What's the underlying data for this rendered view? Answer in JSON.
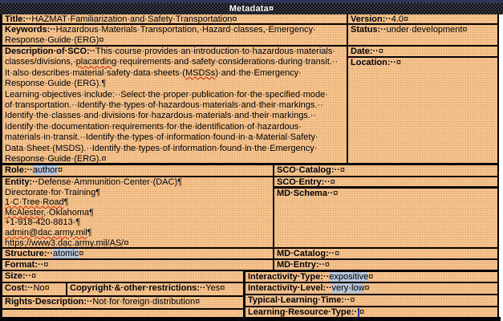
{
  "colors": {
    "peach": "#f6c48f",
    "hl": "#b5c4d8",
    "caret": "#223a99",
    "navy": "#34345a",
    "squiggle": "#cc2200"
  },
  "header": {
    "title": "Metadata¤"
  },
  "cells": {
    "title": [
      {
        "t": "Title:··",
        "b": true
      },
      {
        "t": "HAZMAT·Familiarization·and·Safety·Transportation¤"
      }
    ],
    "version": [
      {
        "t": "Version:··",
        "b": true
      },
      {
        "t": "4.0¤"
      }
    ],
    "keywords": [
      {
        "t": "Keywords:··",
        "b": true
      },
      {
        "t": "Hazardous·Materials·Transportation,·Hazard·classes,·Emergency·\nResponse·Guide·(ERG)¤"
      }
    ],
    "status": [
      {
        "t": "Status:··",
        "b": true
      },
      {
        "t": "under·development¤"
      }
    ],
    "description": [
      {
        "t": "Description·of·SCO:··",
        "b": true
      },
      {
        "t": "This·course·provides·an·introduction·to·hazardous·materials·\nclasses/divisions,·"
      },
      {
        "t": "placarding",
        "sp": true
      },
      {
        "t": "·requirements·and·safety·considerations·during·transit.··\nIt·also·describes·material·safety·data·sheets·("
      },
      {
        "t": "MSDSs",
        "sp": true
      },
      {
        "t": ")·and·the·Emergency·\nResponse·Guide·(ERG).¶\nLearning·objectives·include:··Select·the·proper·publication·for·the·specified·mode·\nof·transportation.··Identify·the·types·of·hazardous·materials·and·their·markings.··\nIdentify·the·classes·and·divisions·for·hazardous·materials·and·their·markings.··\nIdentify·the·documentation·requirements·for·the·identification·of·hazardous·\nmaterials·in·transit.··Identify·the·types·of·information·found·in·a·Material·Safety·\nData·Sheet·(MSDS).··Identify·the·types·of·information·found·in·the·Emergency·\nResponse·Guide·(ERG).¤"
      }
    ],
    "date": [
      {
        "t": "Date:··",
        "b": true
      },
      {
        "t": "¤"
      }
    ],
    "location": [
      {
        "t": "Location:··",
        "b": true
      },
      {
        "t": "¤"
      }
    ],
    "role": [
      {
        "t": "Role:··",
        "b": true
      },
      {
        "t": "author",
        "hl": true
      },
      {
        "t": "¤"
      }
    ],
    "sco_catalog": [
      {
        "t": "SCO·Catalog:··",
        "b": true
      },
      {
        "t": "¤"
      }
    ],
    "entity": [
      {
        "t": "Entity:··",
        "b": true
      },
      {
        "t": "Defense·Ammunition·Center·(DAC)¶\nDirectorate·for·Training¶\n"
      },
      {
        "t": "1·C·Tree·Road",
        "sp": true
      },
      {
        "t": "¶\n"
      },
      {
        "t": "McAlester",
        "sp": true
      },
      {
        "t": ",·Oklahoma¶\n+1-918-420-8813·¶\n"
      },
      {
        "t": "admin@dac.army.mil",
        "sp": true
      },
      {
        "t": "¶\n"
      },
      {
        "t": "https://www3.dac.army.mil/AS/",
        "sp": true
      },
      {
        "t": "¤"
      }
    ],
    "sco_entry": [
      {
        "t": "SCO·Entry:··",
        "b": true
      },
      {
        "t": "¤"
      }
    ],
    "md_schema": [
      {
        "t": "MD·Schema··",
        "b": true
      },
      {
        "t": "¤"
      }
    ],
    "structure": [
      {
        "t": "Structure:··",
        "b": true
      },
      {
        "t": "atomic",
        "hl": true
      },
      {
        "t": "¤"
      }
    ],
    "md_catalog": [
      {
        "t": "MD·Catalog:··",
        "b": true
      },
      {
        "t": "¤"
      }
    ],
    "format": [
      {
        "t": "Format:··",
        "b": true
      },
      {
        "t": "¤"
      }
    ],
    "md_entry": [
      {
        "t": "MD·Entry:··",
        "b": true
      },
      {
        "t": "¤"
      }
    ],
    "size": [
      {
        "t": "Size:··",
        "b": true
      },
      {
        "t": "¤"
      }
    ],
    "interactivity_type": [
      {
        "t": "Interactivity·Type:··",
        "b": true
      },
      {
        "t": "expositive",
        "hl": true
      },
      {
        "t": "¤"
      }
    ],
    "cost": [
      {
        "t": "Cost:··",
        "b": true
      },
      {
        "t": "No¤"
      }
    ],
    "copyright": [
      {
        "t": "Copyright·&·other·restrictions:··",
        "b": true
      },
      {
        "t": "Yes¤"
      }
    ],
    "interactivity_level": [
      {
        "t": "Interactivity·Level:··",
        "b": true
      },
      {
        "t": "very·low",
        "hl": true
      },
      {
        "t": "¤"
      }
    ],
    "rights": [
      {
        "t": "Rights·Description:··",
        "b": true
      },
      {
        "t": "Not·for·foreign·distribution¤"
      }
    ],
    "typical_learning_time": [
      {
        "t": "Typical·Learning·Time:··",
        "b": true
      },
      {
        "t": "¤"
      }
    ],
    "learning_resource_type": [
      {
        "t": "Learning·Resource·Type:·",
        "b": true
      },
      {
        "caret": true
      },
      {
        "t": "¤"
      }
    ]
  }
}
